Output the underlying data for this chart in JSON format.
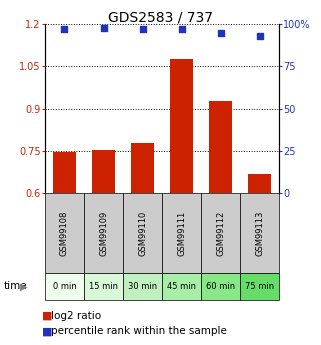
{
  "title": "GDS2583 / 737",
  "samples": [
    "GSM99108",
    "GSM99109",
    "GSM99110",
    "GSM99111",
    "GSM99112",
    "GSM99113"
  ],
  "time_labels": [
    "0 min",
    "15 min",
    "30 min",
    "45 min",
    "60 min",
    "75 min"
  ],
  "log2_ratio": [
    0.748,
    0.752,
    0.778,
    1.075,
    0.928,
    0.668
  ],
  "percentile_rank": [
    97,
    98,
    97,
    97,
    95,
    93
  ],
  "left_ylim": [
    0.6,
    1.2
  ],
  "right_ylim": [
    0,
    100
  ],
  "left_yticks": [
    0.6,
    0.75,
    0.9,
    1.05,
    1.2
  ],
  "right_yticks": [
    0,
    25,
    50,
    75,
    100
  ],
  "right_yticklabels": [
    "0",
    "25",
    "50",
    "75",
    "100%"
  ],
  "bar_color": "#cc2200",
  "dot_color": "#2233bb",
  "bar_width": 0.6,
  "time_colors": [
    "#eeffee",
    "#d8f8d8",
    "#c0f0c0",
    "#a8eea8",
    "#88e888",
    "#66dd66"
  ],
  "sample_box_color": "#cccccc",
  "title_fontsize": 10,
  "tick_fontsize": 7,
  "legend_fontsize": 7.5
}
